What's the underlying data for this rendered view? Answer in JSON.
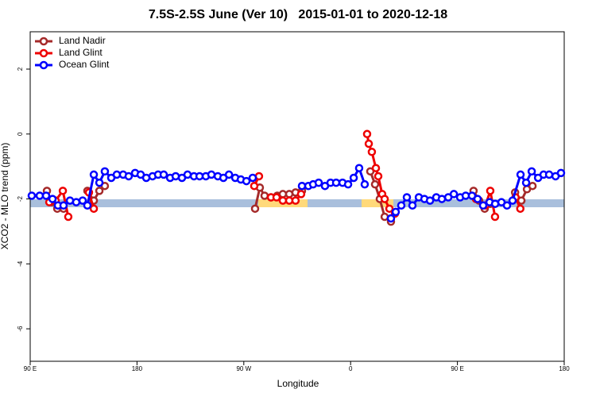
{
  "chart_data": {
    "type": "line",
    "title": "7.5S-2.5S June (Ver 10)   2015-01-01 to 2020-12-18",
    "x_label": "Longitude",
    "y_label": "XCO2 - MLO trend (ppm)",
    "xlim": [
      90,
      540
    ],
    "ylim": [
      -7,
      3.15
    ],
    "xticks": [
      {
        "value": 90,
        "label": "90 E"
      },
      {
        "value": 180,
        "label": "180"
      },
      {
        "value": 270,
        "label": "90 W"
      },
      {
        "value": 360,
        "label": "0"
      },
      {
        "value": 450,
        "label": "90 E"
      },
      {
        "value": 540,
        "label": "180"
      }
    ],
    "yticks": [
      -6,
      -4,
      -2,
      0,
      2
    ],
    "legend": "top-left",
    "series": [
      {
        "name": "Land Nadir",
        "color": "#a52a2a",
        "x": [
          104.1,
          108.1,
          112.8,
          118.1,
          null,
          138.2,
          143.6,
          148.3,
          152.9,
          null,
          279.5,
          283.5,
          287.5,
          292.9,
          298.2,
          302.9,
          308.3,
          313.6,
          319,
          null,
          376.6,
          380.6,
          384.6,
          388.7,
          394,
          null,
          463.6,
          468.3,
          473,
          477.7,
          null,
          498.6,
          503.9,
          508.6,
          513.3
        ],
        "values": [
          -1.75,
          -2.1,
          -2.3,
          -2.3,
          null,
          -1.75,
          -2.05,
          -1.75,
          -1.6,
          null,
          -2.3,
          -1.65,
          -1.9,
          -1.95,
          -1.9,
          -1.85,
          -1.85,
          -1.8,
          -1.75,
          null,
          -1.15,
          -1.55,
          -2.0,
          -2.55,
          -2.7,
          null,
          -1.75,
          -2.05,
          -2.3,
          -2.15,
          null,
          -1.8,
          -2.05,
          -1.7,
          -1.6
        ]
      },
      {
        "name": "Land Glint",
        "color": "#ee0000",
        "x": [
          106.1,
          111.4,
          117.5,
          122.1,
          null,
          139.5,
          143.6,
          null,
          278.8,
          282.8,
          null,
          292.9,
          297.6,
          302.9,
          308.3,
          313.6,
          318.3,
          null,
          373.9,
          375.3,
          377.9,
          381.3,
          383.3,
          386.6,
          388.7,
          392.7,
          397.4,
          null,
          465.6,
          473.6,
          477.7,
          481.7,
          null,
          499,
          503
        ],
        "values": [
          -2.1,
          -2.05,
          -1.75,
          -2.55,
          null,
          -1.8,
          -2.3,
          null,
          -1.6,
          -1.3,
          null,
          -1.95,
          -1.95,
          -2.05,
          -2.05,
          -2.05,
          -1.85,
          null,
          0.0,
          -0.3,
          -0.55,
          -1.05,
          -1.3,
          -1.85,
          -2.0,
          -2.3,
          -2.45,
          null,
          -2.0,
          -2.2,
          -1.75,
          -2.55,
          null,
          -1.95,
          -2.3
        ]
      },
      {
        "name": "Ocean Glint",
        "color": "#0000ff",
        "x": [
          91.3,
          98,
          103.4,
          108.8,
          113.4,
          118.1,
          123.5,
          128.8,
          134.2,
          138.2,
          143.6,
          148.3,
          152.9,
          158.3,
          163,
          168.3,
          173,
          178.4,
          183.1,
          187.8,
          193.1,
          197.8,
          202.5,
          207.9,
          212.6,
          217.9,
          222.6,
          228,
          232.7,
          238,
          242.7,
          248.1,
          252.8,
          257.5,
          262.8,
          267.5,
          272.2,
          277.5,
          null,
          319,
          324.4,
          328.4,
          333.1,
          338.4,
          343.1,
          347.8,
          353.2,
          357.9,
          362.6,
          367.2,
          371.9,
          null,
          394,
          398,
          402.7,
          407.4,
          412.1,
          417.5,
          422.2,
          426.9,
          432.2,
          436.9,
          442.3,
          447,
          452.3,
          457,
          462.3,
          467,
          471.7,
          477.1,
          481.8,
          487.1,
          491.8,
          496.5,
          503.2,
          507.9,
          512.6,
          518,
          522.6,
          527.3,
          532.7,
          537.3
        ],
        "values": [
          -1.9,
          -1.9,
          -1.9,
          -2.0,
          -2.2,
          -2.2,
          -2.05,
          -2.1,
          -2.05,
          -2.2,
          -1.25,
          -1.5,
          -1.15,
          -1.35,
          -1.25,
          -1.25,
          -1.3,
          -1.2,
          -1.25,
          -1.35,
          -1.3,
          -1.25,
          -1.25,
          -1.35,
          -1.3,
          -1.35,
          -1.25,
          -1.3,
          -1.3,
          -1.3,
          -1.25,
          -1.3,
          -1.35,
          -1.25,
          -1.35,
          -1.4,
          -1.45,
          -1.35,
          null,
          -1.6,
          -1.6,
          -1.55,
          -1.5,
          -1.6,
          -1.5,
          -1.5,
          -1.5,
          -1.55,
          -1.35,
          -1.05,
          -1.55,
          null,
          -2.6,
          -2.4,
          -2.2,
          -1.95,
          -2.2,
          -1.95,
          -2.0,
          -2.05,
          -1.95,
          -2.0,
          -1.95,
          -1.85,
          -1.95,
          -1.9,
          -1.9,
          -2.0,
          -2.2,
          -2.1,
          -2.15,
          -2.1,
          -2.2,
          -2.05,
          -1.25,
          -1.5,
          -1.15,
          -1.35,
          -1.25,
          -1.25,
          -1.3,
          -1.2
        ]
      }
    ]
  }
}
